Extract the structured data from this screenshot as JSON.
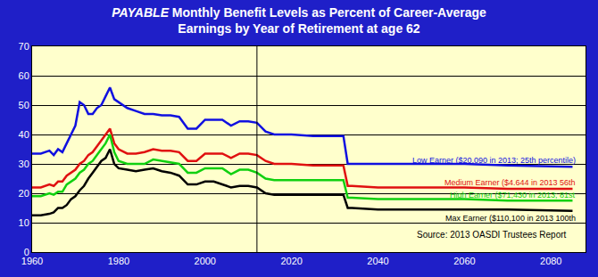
{
  "chart_data": {
    "type": "line",
    "title": "PAYABLE Monthly Benefit Levels as Percent of Career-Average Earnings by Year of Retirement at age 62",
    "x": [
      1960,
      1962,
      1964,
      1965,
      1966,
      1967,
      1968,
      1969,
      1970,
      1971,
      1972,
      1973,
      1974,
      1975,
      1976,
      1977,
      1978,
      1979,
      1980,
      1982,
      1984,
      1986,
      1988,
      1990,
      1992,
      1994,
      1996,
      1998,
      2000,
      2002,
      2004,
      2006,
      2008,
      2010,
      2012,
      2014,
      2016,
      2020,
      2025,
      2030,
      2032,
      2033,
      2034,
      2040,
      2050,
      2060,
      2070,
      2085
    ],
    "series": [
      {
        "name": "Low Earner ($20,090 in 2013; 25th percentile)",
        "color": "#1010e0",
        "values": [
          33.5,
          33.5,
          34.5,
          33,
          35,
          34,
          37,
          40,
          43,
          51,
          50,
          47,
          47,
          49,
          50,
          53,
          56,
          52,
          51,
          49,
          48,
          47,
          47,
          46.5,
          46.5,
          46,
          42,
          42,
          45,
          45,
          45,
          43,
          44.5,
          44.5,
          44,
          41,
          40,
          40,
          39.5,
          39.5,
          39.5,
          30,
          30,
          30,
          30,
          30,
          29.5,
          29
        ]
      },
      {
        "name": "Medium Earner ($4.644 in 2013 56th",
        "color": "#e01010",
        "values": [
          22,
          22,
          23,
          22.5,
          24,
          24,
          26,
          27,
          28,
          30,
          31,
          33,
          34,
          36,
          38,
          40,
          42,
          37,
          35,
          33.5,
          33.5,
          34,
          35,
          34.5,
          34.5,
          34,
          31,
          31,
          33.5,
          33.5,
          33.5,
          32,
          33.5,
          33.5,
          33,
          31,
          30,
          30,
          29.5,
          29.5,
          29.5,
          22.5,
          22.5,
          22,
          22,
          22,
          21.5,
          21.5
        ]
      },
      {
        "name": "High Earner ($71,430 in 2013; 81st",
        "color": "#10d010",
        "values": [
          19,
          19,
          20,
          19.5,
          20.5,
          20.5,
          23,
          24,
          25,
          27,
          28,
          30,
          31,
          33,
          35,
          37,
          40,
          34,
          31,
          30,
          30,
          30,
          31.5,
          31,
          30.5,
          30,
          27,
          27,
          28.5,
          28.5,
          28.5,
          26.5,
          28,
          28,
          27,
          25,
          24.5,
          24.5,
          24.5,
          24.5,
          24.5,
          18.5,
          18.5,
          18,
          18,
          18,
          17.5,
          17.5
        ]
      },
      {
        "name": "Max Earner ($110,100 in 2013 100th",
        "color": "#000000",
        "values": [
          12.5,
          12.5,
          13,
          13.5,
          15,
          15,
          16,
          18,
          19,
          21,
          22.5,
          25,
          27,
          29,
          31,
          32,
          35,
          30,
          28.5,
          28,
          27.5,
          28,
          28.5,
          27.5,
          27,
          26,
          23,
          23,
          24,
          24,
          23,
          22,
          22.5,
          22.5,
          22,
          20,
          19.5,
          19.5,
          19.5,
          19.5,
          19.5,
          15,
          15,
          14.5,
          14.5,
          14.5,
          14.5,
          14
        ]
      }
    ],
    "annotations": [
      "Source: 2013 OASDI Trustees Report"
    ],
    "vline_x": 2012,
    "xlim": [
      1960,
      2088
    ],
    "xticks": [
      1960,
      1980,
      2000,
      2020,
      2040,
      2060,
      2080
    ],
    "ylim": [
      0,
      70
    ],
    "yticks": [
      0,
      10,
      20,
      30,
      40,
      50,
      60,
      70
    ],
    "grid": true
  }
}
